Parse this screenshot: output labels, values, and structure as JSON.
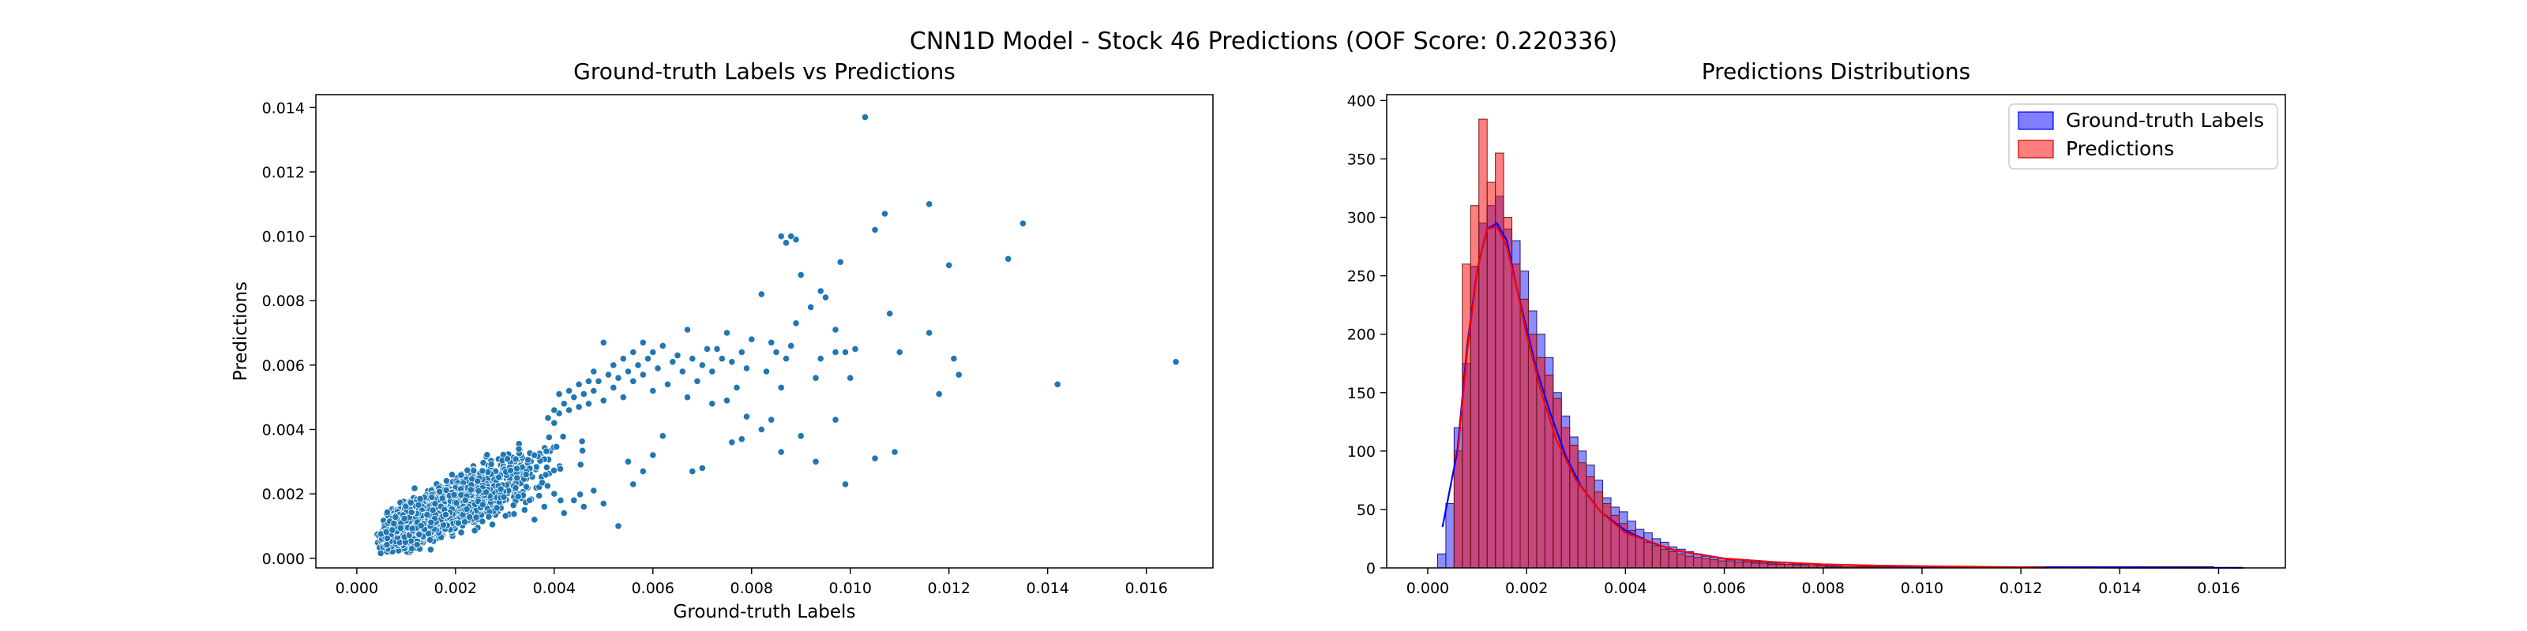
{
  "figure": {
    "suptitle": "CNN1D Model - Stock 46 Predictions (OOF Score: 0.220336)"
  },
  "chart_data": [
    {
      "type": "scatter",
      "title": "Ground-truth Labels vs Predictions",
      "xlabel": "Ground-truth Labels",
      "ylabel": "Predictions",
      "xlim": [
        -0.00083,
        0.01735
      ],
      "ylim": [
        -0.0003,
        0.0144
      ],
      "xticks": [
        "0.000",
        "0.002",
        "0.004",
        "0.006",
        "0.008",
        "0.010",
        "0.012",
        "0.014",
        "0.016"
      ],
      "yticks": [
        "0.000",
        "0.002",
        "0.004",
        "0.006",
        "0.008",
        "0.010",
        "0.012",
        "0.014"
      ],
      "grid": false,
      "color": "#1f77b4",
      "dense_cluster": {
        "note": "approx. 3800 points along y ≈ 0.67x + 0.0003, x from 0.0003 to 0.0045",
        "count": 3800
      },
      "points": [
        [
          0.0103,
          0.0137
        ],
        [
          0.0135,
          0.0104
        ],
        [
          0.0116,
          0.011
        ],
        [
          0.0107,
          0.0107
        ],
        [
          0.0105,
          0.0102
        ],
        [
          0.0132,
          0.0093
        ],
        [
          0.012,
          0.0091
        ],
        [
          0.0166,
          0.0061
        ],
        [
          0.0142,
          0.0054
        ],
        [
          0.0121,
          0.0062
        ],
        [
          0.0122,
          0.0057
        ],
        [
          0.0118,
          0.0051
        ],
        [
          0.0116,
          0.007
        ],
        [
          0.011,
          0.0064
        ],
        [
          0.0108,
          0.0076
        ],
        [
          0.0109,
          0.0033
        ],
        [
          0.0101,
          0.0065
        ],
        [
          0.0099,
          0.0064
        ],
        [
          0.0097,
          0.0064
        ],
        [
          0.01,
          0.0056
        ],
        [
          0.0098,
          0.0092
        ],
        [
          0.0097,
          0.0071
        ],
        [
          0.0095,
          0.0081
        ],
        [
          0.0094,
          0.0062
        ],
        [
          0.0093,
          0.0056
        ],
        [
          0.0094,
          0.0083
        ],
        [
          0.0089,
          0.0099
        ],
        [
          0.0087,
          0.0098
        ],
        [
          0.0088,
          0.01
        ],
        [
          0.0086,
          0.01
        ],
        [
          0.0092,
          0.0078
        ],
        [
          0.009,
          0.0088
        ],
        [
          0.0089,
          0.0073
        ],
        [
          0.0088,
          0.0066
        ],
        [
          0.0087,
          0.0062
        ],
        [
          0.0086,
          0.0053
        ],
        [
          0.0085,
          0.0064
        ],
        [
          0.0084,
          0.0067
        ],
        [
          0.0083,
          0.0058
        ],
        [
          0.0082,
          0.0082
        ],
        [
          0.008,
          0.0068
        ],
        [
          0.0079,
          0.0059
        ],
        [
          0.0078,
          0.0064
        ],
        [
          0.0077,
          0.0053
        ],
        [
          0.0076,
          0.0061
        ],
        [
          0.0075,
          0.007
        ],
        [
          0.0074,
          0.0062
        ],
        [
          0.0073,
          0.0065
        ],
        [
          0.0072,
          0.0058
        ],
        [
          0.0072,
          0.0048
        ],
        [
          0.0071,
          0.0065
        ],
        [
          0.007,
          0.006
        ],
        [
          0.0069,
          0.0055
        ],
        [
          0.0068,
          0.0062
        ],
        [
          0.0067,
          0.005
        ],
        [
          0.0067,
          0.0071
        ],
        [
          0.0066,
          0.0058
        ],
        [
          0.0065,
          0.0063
        ],
        [
          0.0064,
          0.0061
        ],
        [
          0.0063,
          0.0054
        ],
        [
          0.0062,
          0.0066
        ],
        [
          0.0061,
          0.0059
        ],
        [
          0.006,
          0.0064
        ],
        [
          0.006,
          0.0052
        ],
        [
          0.0059,
          0.0062
        ],
        [
          0.0058,
          0.0057
        ],
        [
          0.0058,
          0.0067
        ],
        [
          0.0057,
          0.006
        ],
        [
          0.0056,
          0.0055
        ],
        [
          0.0056,
          0.0064
        ],
        [
          0.0055,
          0.0058
        ],
        [
          0.0054,
          0.0062
        ],
        [
          0.0054,
          0.005
        ],
        [
          0.0053,
          0.0056
        ],
        [
          0.0052,
          0.006
        ],
        [
          0.0052,
          0.0053
        ],
        [
          0.0051,
          0.0057
        ],
        [
          0.005,
          0.0067
        ],
        [
          0.005,
          0.0049
        ],
        [
          0.0049,
          0.0055
        ],
        [
          0.0048,
          0.0052
        ],
        [
          0.0048,
          0.0058
        ],
        [
          0.0047,
          0.0048
        ],
        [
          0.0047,
          0.0055
        ],
        [
          0.0046,
          0.0051
        ],
        [
          0.0045,
          0.0047
        ],
        [
          0.0045,
          0.0054
        ],
        [
          0.0044,
          0.005
        ],
        [
          0.0043,
          0.0046
        ],
        [
          0.0043,
          0.0052
        ],
        [
          0.0042,
          0.0048
        ],
        [
          0.0041,
          0.0045
        ],
        [
          0.0041,
          0.0051
        ],
        [
          0.004,
          0.0046
        ],
        [
          0.004,
          0.0042
        ],
        [
          0.0079,
          0.0044
        ],
        [
          0.0076,
          0.0036
        ],
        [
          0.007,
          0.0028
        ],
        [
          0.0068,
          0.0027
        ],
        [
          0.0062,
          0.0038
        ],
        [
          0.006,
          0.0032
        ],
        [
          0.0058,
          0.0027
        ],
        [
          0.0056,
          0.0023
        ],
        [
          0.0055,
          0.003
        ],
        [
          0.0053,
          0.001
        ],
        [
          0.005,
          0.0017
        ],
        [
          0.0048,
          0.0021
        ],
        [
          0.0046,
          0.0016
        ],
        [
          0.0044,
          0.0018
        ],
        [
          0.0042,
          0.0014
        ],
        [
          0.004,
          0.002
        ],
        [
          0.0038,
          0.0016
        ],
        [
          0.0036,
          0.0012
        ],
        [
          0.0035,
          0.0018
        ],
        [
          0.0034,
          0.0015
        ],
        [
          0.0086,
          0.0033
        ],
        [
          0.0084,
          0.0043
        ],
        [
          0.0099,
          0.0023
        ],
        [
          0.0105,
          0.0031
        ],
        [
          0.0097,
          0.0043
        ],
        [
          0.009,
          0.0038
        ],
        [
          0.0093,
          0.003
        ],
        [
          0.0082,
          0.004
        ],
        [
          0.0078,
          0.0037
        ],
        [
          0.0075,
          0.0049
        ]
      ]
    },
    {
      "type": "histogram",
      "title": "Predictions Distributions",
      "xlabel": "",
      "ylabel": "",
      "xlim": [
        -0.00083,
        0.01735
      ],
      "ylim": [
        0,
        405
      ],
      "xticks": [
        "0.000",
        "0.002",
        "0.004",
        "0.006",
        "0.008",
        "0.010",
        "0.012",
        "0.014",
        "0.016"
      ],
      "yticks": [
        "0",
        "50",
        "100",
        "150",
        "200",
        "250",
        "300",
        "350",
        "400"
      ],
      "legend_position": "upper right",
      "bin_width": 0.000167,
      "bin_start": 0.0002,
      "series": [
        {
          "name": "Ground-truth Labels",
          "color": "#0000ff",
          "counts": [
            12,
            55,
            120,
            175,
            258,
            295,
            310,
            318,
            290,
            280,
            254,
            220,
            200,
            180,
            150,
            130,
            112,
            100,
            88,
            75,
            60,
            52,
            48,
            40,
            33,
            30,
            25,
            22,
            18,
            16,
            14,
            12,
            10,
            9,
            8,
            7,
            7,
            6,
            5,
            5,
            4,
            4,
            3,
            3,
            3,
            2,
            2,
            2,
            2,
            1,
            1,
            1,
            1,
            1,
            1,
            1,
            1,
            1,
            1,
            1,
            1,
            1,
            1,
            1,
            1,
            1,
            1,
            1,
            1,
            1,
            1,
            1,
            1,
            1,
            1,
            1,
            1,
            1,
            1,
            1,
            1,
            1,
            1,
            1,
            1,
            1,
            1,
            1,
            1,
            1,
            1,
            1,
            1,
            1
          ],
          "kde": [
            [
              0.0003,
              35
            ],
            [
              0.0006,
              100
            ],
            [
              0.0008,
              190
            ],
            [
              0.001,
              255
            ],
            [
              0.0012,
              290
            ],
            [
              0.0014,
              295
            ],
            [
              0.0016,
              280
            ],
            [
              0.0018,
              240
            ],
            [
              0.002,
              205
            ],
            [
              0.0022,
              170
            ],
            [
              0.0025,
              130
            ],
            [
              0.0028,
              95
            ],
            [
              0.0031,
              70
            ],
            [
              0.0035,
              48
            ],
            [
              0.004,
              32
            ],
            [
              0.0045,
              22
            ],
            [
              0.005,
              15
            ],
            [
              0.006,
              8
            ],
            [
              0.007,
              5
            ],
            [
              0.008,
              3
            ],
            [
              0.009,
              2
            ],
            [
              0.01,
              1
            ],
            [
              0.012,
              0.5
            ],
            [
              0.014,
              0.3
            ],
            [
              0.0165,
              0.1
            ]
          ]
        },
        {
          "name": "Predictions",
          "color": "#ff0000",
          "counts": [
            0,
            0,
            100,
            260,
            310,
            384,
            330,
            355,
            300,
            260,
            230,
            200,
            180,
            165,
            145,
            120,
            105,
            90,
            78,
            65,
            55,
            45,
            38,
            32,
            26,
            22,
            19,
            16,
            14,
            12,
            10,
            9,
            8,
            7,
            6,
            6,
            5,
            5,
            4,
            4,
            3,
            3,
            3,
            2,
            2,
            2,
            2,
            1,
            1,
            1,
            1,
            1,
            1,
            1,
            1,
            1,
            1,
            1,
            1,
            1,
            1,
            1
          ],
          "kde": [
            [
              0.0006,
              95
            ],
            [
              0.0008,
              185
            ],
            [
              0.001,
              255
            ],
            [
              0.0012,
              290
            ],
            [
              0.0014,
              292
            ],
            [
              0.0016,
              275
            ],
            [
              0.0018,
              240
            ],
            [
              0.002,
              200
            ],
            [
              0.0023,
              150
            ],
            [
              0.0026,
              110
            ],
            [
              0.003,
              75
            ],
            [
              0.0035,
              48
            ],
            [
              0.004,
              30
            ],
            [
              0.005,
              15
            ],
            [
              0.006,
              8
            ],
            [
              0.007,
              5
            ],
            [
              0.008,
              3
            ],
            [
              0.009,
              2
            ],
            [
              0.01,
              1.5
            ],
            [
              0.011,
              1
            ],
            [
              0.0125,
              0.3
            ]
          ]
        }
      ]
    }
  ]
}
